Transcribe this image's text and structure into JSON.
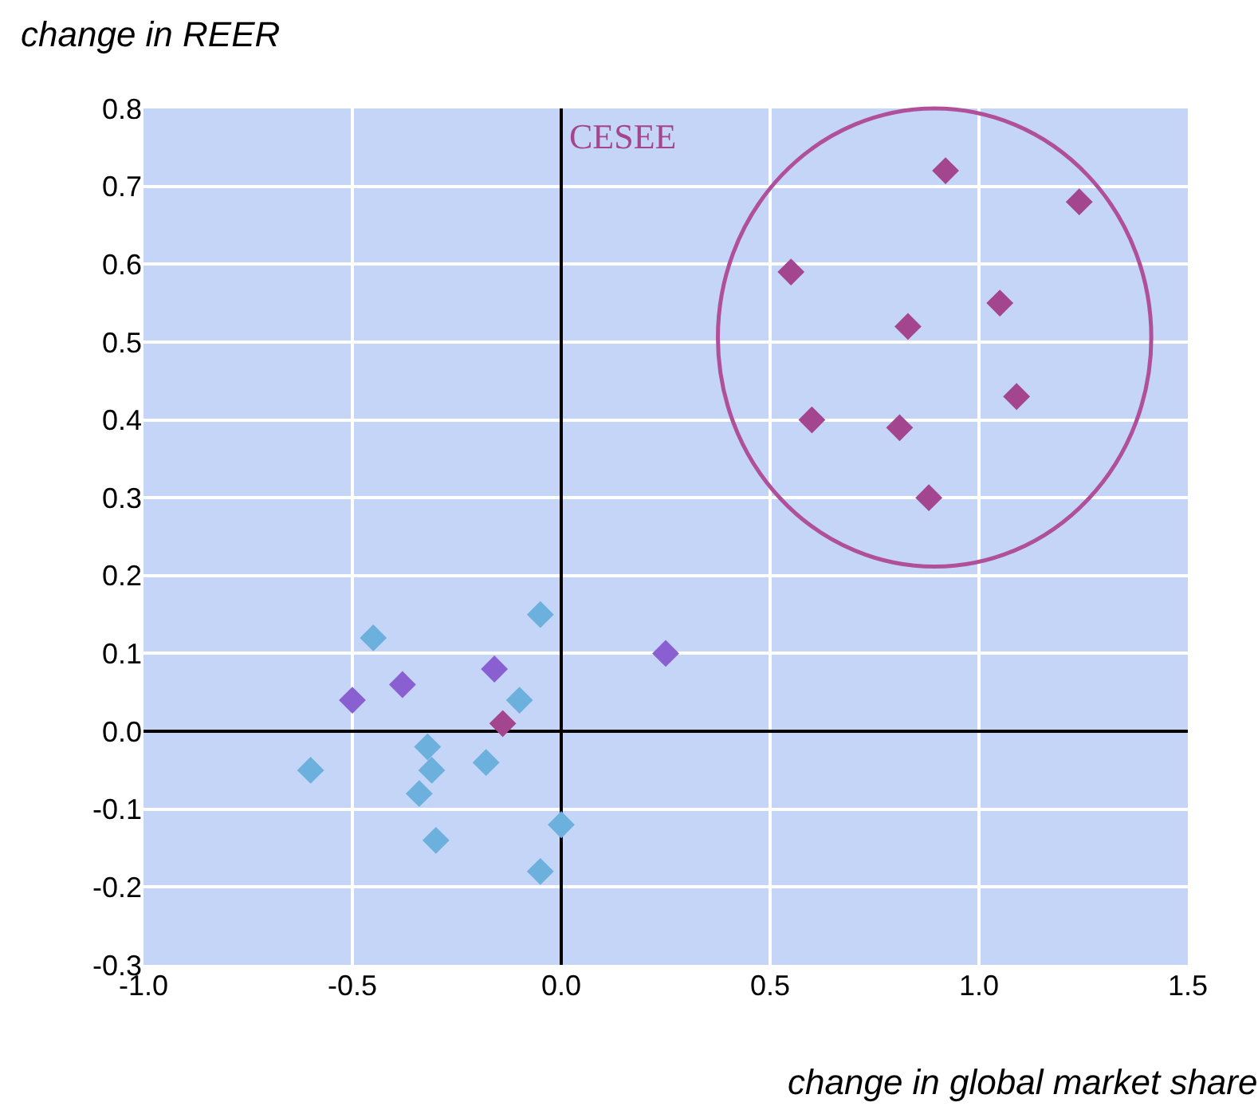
{
  "chart_data": {
    "type": "scatter",
    "xlabel": "change in global market share",
    "ylabel": "change in REER",
    "annotations": [
      "CESEE"
    ],
    "series": [
      {
        "color": "#6cb0dd",
        "x": [
          -0.45,
          -0.05,
          -0.1,
          -0.32,
          -0.31,
          -0.18,
          -0.34,
          -0.6,
          -0.3,
          0.0,
          -0.05
        ],
        "values": [
          0.12,
          0.15,
          0.04,
          -0.02,
          -0.05,
          -0.04,
          -0.08,
          -0.05,
          -0.14,
          -0.12,
          -0.18
        ]
      },
      {
        "color": "#8a5fd1",
        "x": [
          -0.16,
          -0.38,
          -0.5,
          0.25
        ],
        "values": [
          0.08,
          0.06,
          0.04,
          0.1
        ]
      },
      {
        "color": "#a3458f",
        "x": [
          0.92,
          1.24,
          0.55,
          0.83,
          1.05,
          0.6,
          0.81,
          1.09,
          0.88,
          -0.14
        ],
        "values": [
          0.72,
          0.68,
          0.59,
          0.52,
          0.55,
          0.4,
          0.39,
          0.43,
          0.3,
          0.01
        ]
      }
    ],
    "marker": "diamond",
    "grid": true,
    "xlim": [
      -1.0,
      1.5
    ],
    "xticks": [
      {
        "value": -1,
        "label": "-1.0"
      },
      -0.5,
      {
        "value": 0,
        "label": "0.0"
      },
      0.5,
      {
        "value": 1,
        "label": "1.0"
      },
      1.5
    ],
    "ylim": [
      -0.3,
      0.8
    ],
    "yticks": [
      -0.3,
      -0.2,
      -0.1,
      {
        "value": 0,
        "label": "0.0"
      },
      0.1,
      0.2,
      0.3,
      0.4,
      0.5,
      0.6,
      0.7,
      0.8
    ]
  }
}
